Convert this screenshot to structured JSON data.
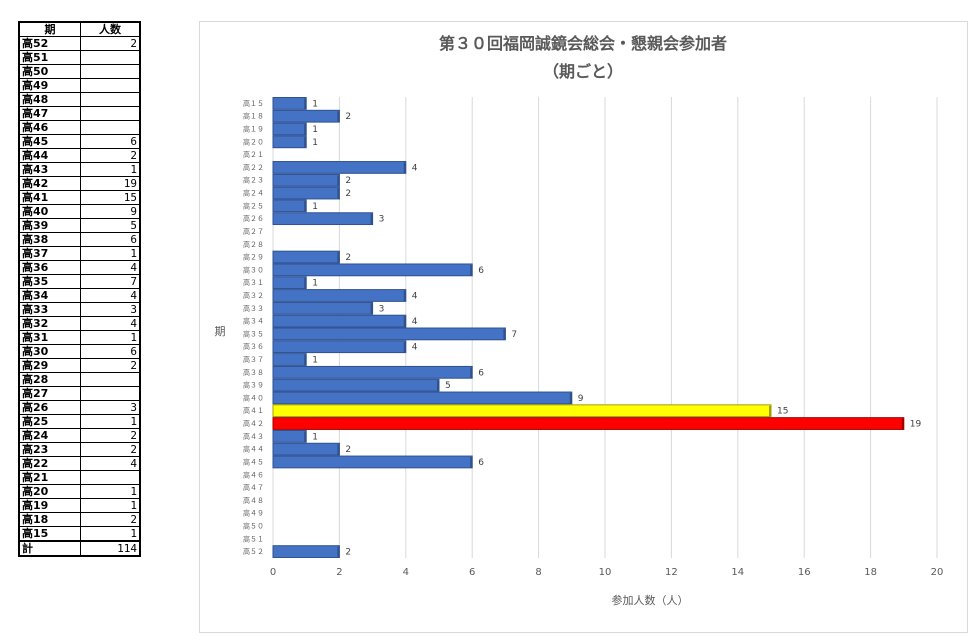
{
  "table": {
    "header_ki": "期",
    "header_count": "人数",
    "rows": [
      {
        "ki": "高52",
        "count": "2"
      },
      {
        "ki": "高51",
        "count": ""
      },
      {
        "ki": "高50",
        "count": ""
      },
      {
        "ki": "高49",
        "count": ""
      },
      {
        "ki": "高48",
        "count": ""
      },
      {
        "ki": "高47",
        "count": ""
      },
      {
        "ki": "高46",
        "count": ""
      },
      {
        "ki": "高45",
        "count": "6"
      },
      {
        "ki": "高44",
        "count": "2"
      },
      {
        "ki": "高43",
        "count": "1"
      },
      {
        "ki": "高42",
        "count": "19"
      },
      {
        "ki": "高41",
        "count": "15"
      },
      {
        "ki": "高40",
        "count": "9"
      },
      {
        "ki": "高39",
        "count": "5"
      },
      {
        "ki": "高38",
        "count": "6"
      },
      {
        "ki": "高37",
        "count": "1"
      },
      {
        "ki": "高36",
        "count": "4"
      },
      {
        "ki": "高35",
        "count": "7"
      },
      {
        "ki": "高34",
        "count": "4"
      },
      {
        "ki": "高33",
        "count": "3"
      },
      {
        "ki": "高32",
        "count": "4"
      },
      {
        "ki": "高31",
        "count": "1"
      },
      {
        "ki": "高30",
        "count": "6"
      },
      {
        "ki": "高29",
        "count": "2"
      },
      {
        "ki": "高28",
        "count": ""
      },
      {
        "ki": "高27",
        "count": ""
      },
      {
        "ki": "高26",
        "count": "3"
      },
      {
        "ki": "高25",
        "count": "1"
      },
      {
        "ki": "高24",
        "count": "2"
      },
      {
        "ki": "高23",
        "count": "2"
      },
      {
        "ki": "高22",
        "count": "4"
      },
      {
        "ki": "高21",
        "count": ""
      },
      {
        "ki": "高20",
        "count": "1"
      },
      {
        "ki": "高19",
        "count": "1"
      },
      {
        "ki": "高18",
        "count": "2"
      },
      {
        "ki": "高15",
        "count": "1"
      }
    ],
    "total_label": "計",
    "total_value": "114"
  },
  "chart_data": {
    "type": "bar",
    "orientation": "horizontal",
    "title": "第３０回福岡誠鏡会総会・懇親会参加者",
    "subtitle": "（期ごと）",
    "xlabel": "参加人数（人）",
    "ylabel": "期",
    "xlim": [
      0,
      20
    ],
    "xticks": [
      0,
      2,
      4,
      6,
      8,
      10,
      12,
      14,
      16,
      18,
      20
    ],
    "grid": "vertical",
    "legend": "none",
    "categories": [
      "高１５",
      "高１８",
      "高１９",
      "高２０",
      "高２１",
      "高２２",
      "高２３",
      "高２４",
      "高２５",
      "高２６",
      "高２７",
      "高２８",
      "高２９",
      "高３０",
      "高３１",
      "高３２",
      "高３３",
      "高３４",
      "高３５",
      "高３６",
      "高３７",
      "高３８",
      "高３９",
      "高４０",
      "高４１",
      "高４２",
      "高４３",
      "高４４",
      "高４５",
      "高４６",
      "高４７",
      "高４８",
      "高４９",
      "高５０",
      "高５１",
      "高５２"
    ],
    "values": [
      1,
      2,
      1,
      1,
      null,
      4,
      2,
      2,
      1,
      3,
      null,
      null,
      2,
      6,
      1,
      4,
      3,
      4,
      7,
      4,
      1,
      6,
      5,
      9,
      15,
      19,
      1,
      2,
      6,
      null,
      null,
      null,
      null,
      null,
      null,
      2
    ],
    "colors": {
      "default": "#4472c4",
      "highlight_41": "#ffff00",
      "highlight_42": "#ff0000"
    }
  }
}
